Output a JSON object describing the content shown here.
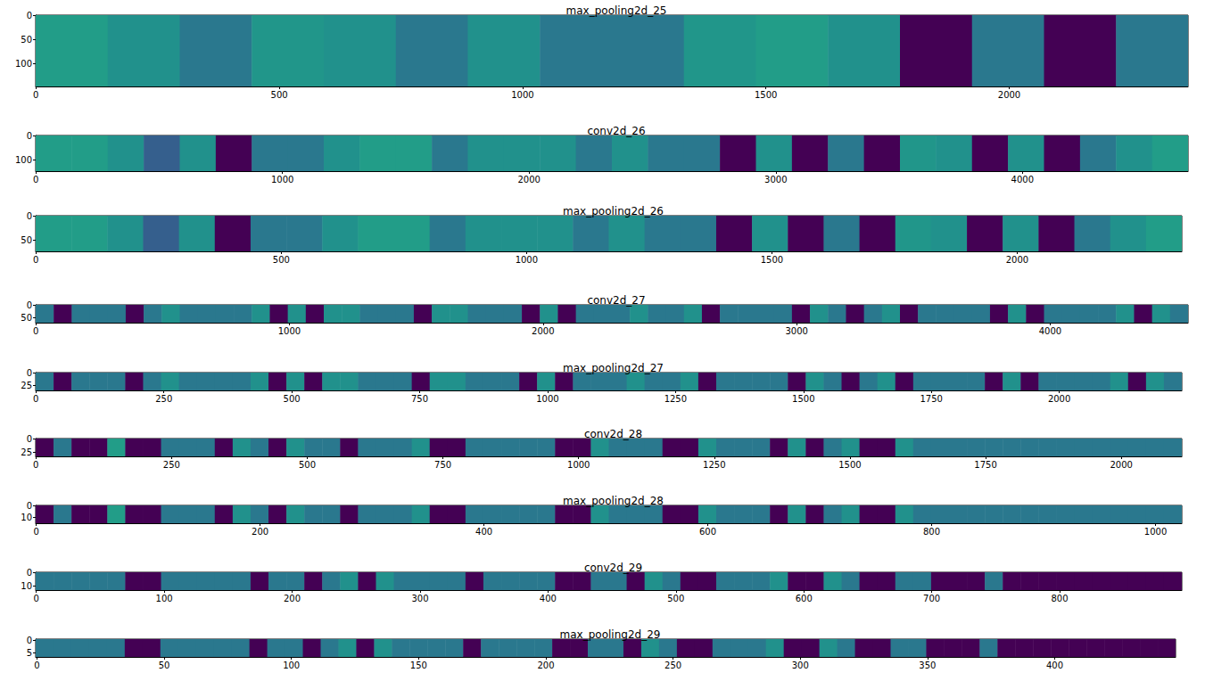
{
  "chart_data": [
    {
      "type": "heatmap",
      "title": "max_pooling2d_25",
      "xlim": [
        -0.5,
        2367.5
      ],
      "ylim": [
        147.5,
        -0.5
      ],
      "xticks": [
        0,
        500,
        1000,
        1500,
        2000
      ],
      "yticks": [
        0,
        50,
        100
      ],
      "clim": [
        0,
        1
      ],
      "cells": [
        0.55,
        0.5,
        0.4,
        0.52,
        0.5,
        0.4,
        0.5,
        0.4,
        0.4,
        0.52,
        0.55,
        0.5,
        0,
        0.4,
        0,
        0.4
      ]
    },
    {
      "type": "heatmap",
      "title": "conv2d_26",
      "xlim": [
        -0.5,
        4671.5
      ],
      "ylim": [
        145.5,
        -0.5
      ],
      "xticks": [
        0,
        1000,
        2000,
        3000,
        4000
      ],
      "yticks": [
        0,
        100
      ],
      "clim": [
        0,
        1
      ],
      "cells": [
        0.55,
        0.55,
        0.5,
        0.3,
        0.5,
        0,
        0.4,
        0.4,
        0.5,
        0.55,
        0.55,
        0.4,
        0.5,
        0.5,
        0.5,
        0.4,
        0.5,
        0.4,
        0.4,
        0,
        0.5,
        0,
        0.4,
        0,
        0.52,
        0.5,
        0,
        0.5,
        0,
        0.4,
        0.5,
        0.55
      ]
    },
    {
      "type": "heatmap",
      "title": "max_pooling2d_26",
      "xlim": [
        -0.5,
        2335.5
      ],
      "ylim": [
        72.5,
        -0.5
      ],
      "xticks": [
        0,
        500,
        1000,
        1500,
        2000
      ],
      "yticks": [
        0,
        50
      ],
      "clim": [
        0,
        1
      ],
      "cells": [
        0.55,
        0.55,
        0.5,
        0.3,
        0.5,
        0,
        0.4,
        0.4,
        0.5,
        0.55,
        0.55,
        0.4,
        0.5,
        0.5,
        0.5,
        0.4,
        0.5,
        0.4,
        0.4,
        0,
        0.5,
        0,
        0.4,
        0,
        0.52,
        0.5,
        0,
        0.5,
        0,
        0.4,
        0.5,
        0.55
      ]
    },
    {
      "type": "heatmap",
      "title": "conv2d_27",
      "xlim": [
        -0.5,
        4543.5
      ],
      "ylim": [
        70.5,
        -0.5
      ],
      "xticks": [
        0,
        1000,
        2000,
        3000,
        4000
      ],
      "yticks": [
        0,
        50
      ],
      "clim": [
        0,
        1
      ],
      "cells": [
        0.4,
        0,
        0.4,
        0.4,
        0.4,
        0,
        0.4,
        0.5,
        0.4,
        0.4,
        0.4,
        0.4,
        0.5,
        0,
        0.5,
        0,
        0.5,
        0.5,
        0.4,
        0.4,
        0.4,
        0,
        0.5,
        0.5,
        0.4,
        0.4,
        0.4,
        0,
        0.5,
        0,
        0.4,
        0.4,
        0.4,
        0.5,
        0.4,
        0.4,
        0.5,
        0,
        0.4,
        0.4,
        0.4,
        0.4,
        0,
        0.5,
        0.4,
        0,
        0.4,
        0.5,
        0,
        0.4,
        0.4,
        0.4,
        0.4,
        0,
        0.5,
        0,
        0.4,
        0.4,
        0.4,
        0.4,
        0.5,
        0,
        0.5,
        0.4
      ]
    },
    {
      "type": "heatmap",
      "title": "max_pooling2d_27",
      "xlim": [
        -0.5,
        2239.5
      ],
      "ylim": [
        34.5,
        -0.5
      ],
      "xticks": [
        0,
        250,
        500,
        750,
        1000,
        1250,
        1500,
        1750,
        2000
      ],
      "yticks": [
        0,
        25
      ],
      "clim": [
        0,
        1
      ],
      "cells": [
        0.4,
        0,
        0.4,
        0.4,
        0.4,
        0,
        0.4,
        0.5,
        0.4,
        0.4,
        0.4,
        0.4,
        0.5,
        0,
        0.5,
        0,
        0.5,
        0.5,
        0.4,
        0.4,
        0.4,
        0,
        0.5,
        0.5,
        0.4,
        0.4,
        0.4,
        0,
        0.5,
        0,
        0.4,
        0.4,
        0.4,
        0.5,
        0.4,
        0.4,
        0.5,
        0,
        0.4,
        0.4,
        0.4,
        0.4,
        0,
        0.5,
        0.4,
        0,
        0.4,
        0.5,
        0,
        0.4,
        0.4,
        0.4,
        0.4,
        0,
        0.5,
        0,
        0.4,
        0.4,
        0.4,
        0.4,
        0.5,
        0,
        0.5,
        0.4
      ]
    },
    {
      "type": "heatmap",
      "title": "conv2d_28",
      "xlim": [
        -0.5,
        2111.5
      ],
      "ylim": [
        32.5,
        -0.5
      ],
      "xticks": [
        0,
        250,
        500,
        750,
        1000,
        1250,
        1500,
        1750,
        2000
      ],
      "yticks": [
        0,
        25
      ],
      "clim": [
        0,
        1
      ],
      "cells": [
        0,
        0.4,
        0,
        0,
        0.55,
        0,
        0,
        0.4,
        0.4,
        0.4,
        0,
        0.5,
        0.4,
        0,
        0.5,
        0.4,
        0.4,
        0,
        0.4,
        0.4,
        0.4,
        0.5,
        0,
        0,
        0.4,
        0.4,
        0.4,
        0.4,
        0.4,
        0,
        0,
        0.5,
        0.4,
        0.4,
        0.4,
        0,
        0,
        0.5,
        0.4,
        0.4,
        0.4,
        0,
        0.5,
        0,
        0.4,
        0.5,
        0,
        0,
        0.5,
        0.4,
        0.4,
        0.4,
        0.4,
        0.4,
        0.4,
        0.4,
        0.4,
        0.4,
        0.4,
        0.4,
        0.4,
        0.4,
        0.4,
        0.4
      ]
    },
    {
      "type": "heatmap",
      "title": "max_pooling2d_28",
      "xlim": [
        -0.5,
        1023.5
      ],
      "ylim": [
        15.5,
        -0.5
      ],
      "xticks": [
        0,
        200,
        400,
        600,
        800,
        1000
      ],
      "yticks": [
        0,
        10
      ],
      "clim": [
        0,
        1
      ],
      "cells": [
        0,
        0.4,
        0,
        0,
        0.55,
        0,
        0,
        0.4,
        0.4,
        0.4,
        0,
        0.5,
        0.4,
        0,
        0.5,
        0.4,
        0.4,
        0,
        0.4,
        0.4,
        0.4,
        0.5,
        0,
        0,
        0.4,
        0.4,
        0.4,
        0.4,
        0.4,
        0,
        0,
        0.5,
        0.4,
        0.4,
        0.4,
        0,
        0,
        0.5,
        0.4,
        0.4,
        0.4,
        0,
        0.5,
        0,
        0.4,
        0.5,
        0,
        0,
        0.5,
        0.4,
        0.4,
        0.4,
        0.4,
        0.4,
        0.4,
        0.4,
        0.4,
        0.4,
        0.4,
        0.4,
        0.4,
        0.4,
        0.4,
        0.4
      ]
    },
    {
      "type": "heatmap",
      "title": "conv2d_29",
      "xlim": [
        -0.5,
        895.5
      ],
      "ylim": [
        13.5,
        -0.5
      ],
      "xticks": [
        0,
        100,
        200,
        300,
        400,
        500,
        600,
        700,
        800
      ],
      "yticks": [
        0,
        10
      ],
      "clim": [
        0,
        1
      ],
      "cells": [
        0.4,
        0.4,
        0.4,
        0.4,
        0.4,
        0,
        0,
        0.4,
        0.4,
        0.4,
        0.4,
        0.4,
        0,
        0.4,
        0.4,
        0,
        0.4,
        0.5,
        0,
        0.5,
        0.4,
        0.4,
        0.4,
        0.4,
        0,
        0.4,
        0.4,
        0.4,
        0.4,
        0,
        0,
        0.4,
        0.4,
        0,
        0.5,
        0.4,
        0,
        0,
        0.4,
        0.4,
        0.4,
        0.5,
        0,
        0,
        0.5,
        0.4,
        0,
        0,
        0.4,
        0.4,
        0,
        0,
        0,
        0.4,
        0,
        0,
        0,
        0,
        0,
        0,
        0,
        0,
        0,
        0
      ]
    },
    {
      "type": "heatmap",
      "title": "max_pooling2d_29",
      "xlim": [
        -0.5,
        447.5
      ],
      "ylim": [
        6.5,
        -0.5
      ],
      "xticks": [
        0,
        50,
        100,
        150,
        200,
        250,
        300,
        350,
        400
      ],
      "yticks": [
        0,
        5
      ],
      "clim": [
        0,
        1
      ],
      "cells": [
        0.4,
        0.4,
        0.4,
        0.4,
        0.4,
        0,
        0,
        0.4,
        0.4,
        0.4,
        0.4,
        0.4,
        0,
        0.4,
        0.4,
        0,
        0.4,
        0.5,
        0,
        0.5,
        0.4,
        0.4,
        0.4,
        0.4,
        0,
        0.4,
        0.4,
        0.4,
        0.4,
        0,
        0,
        0.4,
        0.4,
        0,
        0.5,
        0.4,
        0,
        0,
        0.4,
        0.4,
        0.4,
        0.5,
        0,
        0,
        0.5,
        0.4,
        0,
        0,
        0.4,
        0.4,
        0,
        0,
        0,
        0.4,
        0,
        0,
        0,
        0,
        0,
        0,
        0,
        0,
        0,
        0
      ]
    }
  ]
}
